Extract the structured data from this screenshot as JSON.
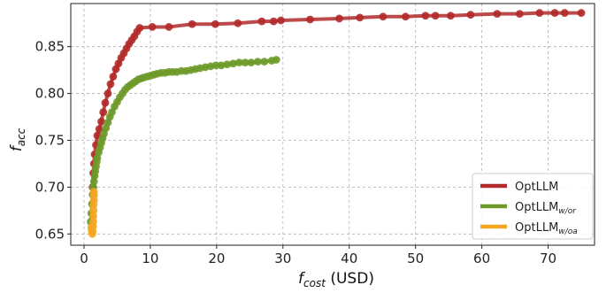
{
  "chart_data": {
    "type": "line",
    "title": "",
    "xlabel": {
      "main": "f",
      "sub": "cost",
      "unit": " (USD)"
    },
    "ylabel": {
      "main": "f",
      "sub": "acc"
    },
    "xlim": [
      -2,
      77
    ],
    "ylim": [
      0.638,
      0.896
    ],
    "x_ticks": [
      0,
      10,
      20,
      30,
      40,
      50,
      60,
      70
    ],
    "y_ticks": [
      0.65,
      0.7,
      0.75,
      0.8,
      0.85
    ],
    "y_tick_labels": [
      "0.65",
      "0.70",
      "0.75",
      "0.80",
      "0.85"
    ],
    "grid": true,
    "legend_position": "bottom-right",
    "series": [
      {
        "name": "OptLLM",
        "name_main": "OptLLM",
        "name_sub": "",
        "color": "#b22a2a",
        "x": [
          1.3,
          1.4,
          1.5,
          1.6,
          1.8,
          2.0,
          2.3,
          2.6,
          2.9,
          3.2,
          3.6,
          4.0,
          4.4,
          4.8,
          5.2,
          5.6,
          6.0,
          6.4,
          6.8,
          7.2,
          7.6,
          8.0,
          8.4,
          10.3,
          12.8,
          16.3,
          19.8,
          23.2,
          26.8,
          28.6,
          29.7,
          34.1,
          38.5,
          41.6,
          45.1,
          48.5,
          51.5,
          53.0,
          55.3,
          58.3,
          62.3,
          65.7,
          68.7,
          71.0,
          72.5,
          75.0
        ],
        "y": [
          0.7,
          0.715,
          0.725,
          0.735,
          0.745,
          0.755,
          0.762,
          0.77,
          0.78,
          0.79,
          0.8,
          0.81,
          0.818,
          0.826,
          0.832,
          0.838,
          0.843,
          0.848,
          0.853,
          0.857,
          0.861,
          0.866,
          0.87,
          0.871,
          0.871,
          0.874,
          0.874,
          0.875,
          0.877,
          0.877,
          0.878,
          0.879,
          0.88,
          0.881,
          0.882,
          0.882,
          0.883,
          0.883,
          0.883,
          0.884,
          0.885,
          0.885,
          0.886,
          0.886,
          0.886,
          0.886
        ]
      },
      {
        "name": "OptLLM_{w/or}",
        "name_main": "OptLLM",
        "name_sub": "w/or",
        "color": "#6e9a2a",
        "x": [
          1.0,
          1.1,
          1.2,
          1.3,
          1.4,
          1.5,
          1.6,
          1.7,
          1.8,
          1.9,
          2.0,
          2.2,
          2.4,
          2.6,
          2.8,
          3.0,
          3.3,
          3.6,
          3.9,
          4.2,
          4.6,
          5.0,
          5.4,
          5.8,
          6.2,
          6.6,
          7.0,
          7.4,
          7.8,
          8.2,
          8.6,
          9.0,
          9.5,
          10.0,
          10.5,
          11.0,
          11.6,
          12.2,
          12.8,
          13.4,
          14.0,
          14.7,
          15.4,
          16.1,
          16.8,
          17.5,
          18.3,
          19.1,
          19.9,
          20.7,
          21.6,
          22.5,
          23.4,
          24.3,
          25.2,
          26.2,
          27.2,
          28.3,
          29.0
        ],
        "y": [
          0.663,
          0.672,
          0.682,
          0.692,
          0.7,
          0.706,
          0.712,
          0.717,
          0.722,
          0.727,
          0.731,
          0.737,
          0.742,
          0.747,
          0.752,
          0.757,
          0.763,
          0.769,
          0.775,
          0.78,
          0.786,
          0.791,
          0.796,
          0.8,
          0.804,
          0.807,
          0.809,
          0.811,
          0.813,
          0.815,
          0.816,
          0.817,
          0.818,
          0.819,
          0.82,
          0.821,
          0.822,
          0.822,
          0.823,
          0.823,
          0.823,
          0.824,
          0.824,
          0.825,
          0.826,
          0.827,
          0.828,
          0.829,
          0.83,
          0.83,
          0.831,
          0.832,
          0.833,
          0.833,
          0.833,
          0.834,
          0.834,
          0.835,
          0.836
        ]
      },
      {
        "name": "OptLLM_{w/oa}",
        "name_main": "OptLLM",
        "name_sub": "w/oa",
        "color": "#f5a623",
        "x": [
          1.1,
          1.15,
          1.2,
          1.25,
          1.3,
          1.35,
          1.4,
          1.4,
          1.45,
          1.45,
          1.5,
          1.5,
          1.5
        ],
        "y": [
          0.657,
          0.655,
          0.652,
          0.65,
          0.653,
          0.658,
          0.663,
          0.669,
          0.675,
          0.681,
          0.686,
          0.691,
          0.695
        ]
      }
    ]
  }
}
